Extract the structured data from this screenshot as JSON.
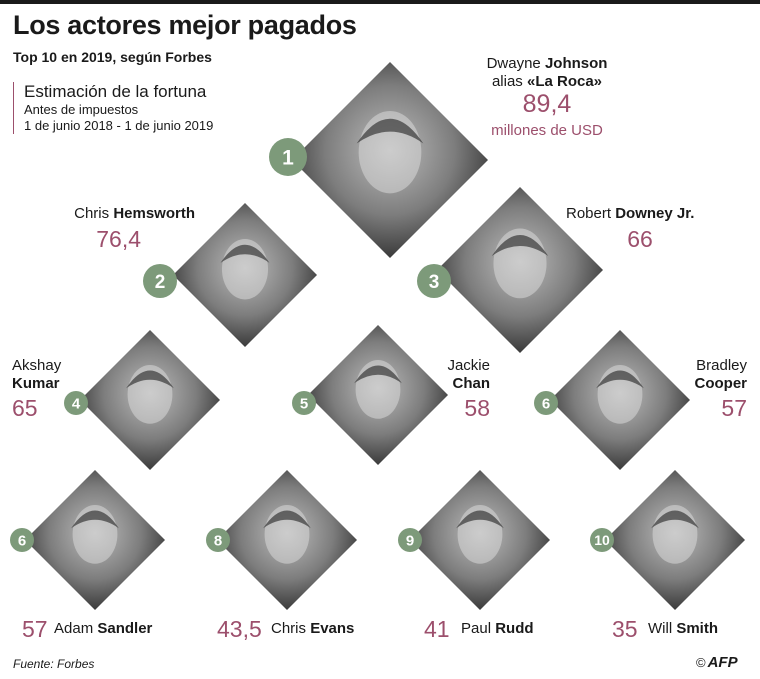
{
  "header": {
    "title": "Los actores mejor pagados",
    "subtitle": "Top 10 en 2019, según Forbes"
  },
  "legend": {
    "title": "Estimación de la fortuna",
    "line1": "Antes de impuestos",
    "line2": "1 de junio 2018 - 1 de junio 2019"
  },
  "chart_data": {
    "type": "table",
    "title": "Los actores mejor pagados",
    "unit": "millones de USD",
    "columns": [
      "rank",
      "first",
      "last",
      "value"
    ],
    "rows": [
      {
        "rank": "1",
        "first": "Dwayne",
        "last": "Johnson",
        "alias_prefix": "alias",
        "alias": "«La Roca»",
        "value": "89,4"
      },
      {
        "rank": "2",
        "first": "Chris",
        "last": "Hemsworth",
        "value": "76,4"
      },
      {
        "rank": "3",
        "first": "Robert",
        "last": "Downey Jr.",
        "value": "66"
      },
      {
        "rank": "4",
        "first": "Akshay",
        "last": "Kumar",
        "value": "65"
      },
      {
        "rank": "5",
        "first": "Jackie",
        "last": "Chan",
        "value": "58"
      },
      {
        "rank": "6",
        "first": "Bradley",
        "last": "Cooper",
        "value": "57"
      },
      {
        "rank": "6",
        "first": "Adam",
        "last": "Sandler",
        "value": "57"
      },
      {
        "rank": "8",
        "first": "Chris",
        "last": "Evans",
        "value": "43,5"
      },
      {
        "rank": "9",
        "first": "Paul",
        "last": "Rudd",
        "value": "41"
      },
      {
        "rank": "10",
        "first": "Will",
        "last": "Smith",
        "value": "35"
      }
    ]
  },
  "footer": {
    "source": "Fuente: Forbes",
    "logo": "AFP",
    "logo_symbol": "©"
  },
  "colors": {
    "accent": "#9c4f6c",
    "badge": "#7d9a7a",
    "photo_dark": "#2b2b2b",
    "photo_light": "#bdbdbd"
  }
}
